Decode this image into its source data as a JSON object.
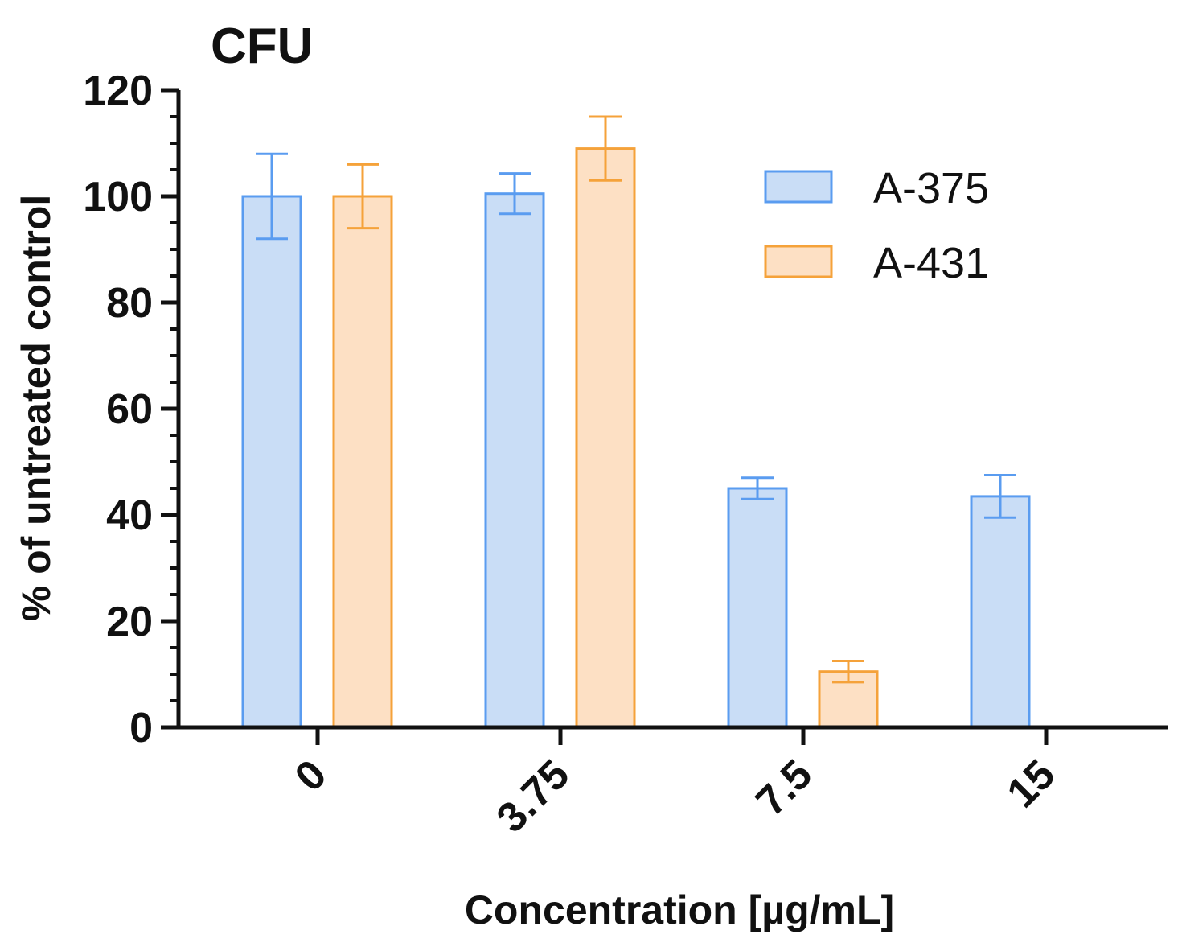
{
  "chart_data": {
    "type": "bar",
    "title": "CFU",
    "xlabel": "Concentration [µg/mL]",
    "ylabel": "% of untreated control",
    "categories": [
      "0",
      "3.75",
      "7.5",
      "15"
    ],
    "ylim": [
      0,
      120
    ],
    "yticks": [
      0,
      20,
      40,
      60,
      80,
      100,
      120
    ],
    "y_minor_step": 5,
    "grid": false,
    "legend_position": "top-right",
    "series": [
      {
        "name": "A-375",
        "values": [
          100,
          100.5,
          45,
          43.5
        ],
        "errors": [
          8,
          3.8,
          2,
          4
        ],
        "fill": "#c9ddf6",
        "stroke": "#5a9cf0"
      },
      {
        "name": "A-431",
        "values": [
          100,
          109,
          10.5,
          null
        ],
        "errors": [
          6,
          6,
          2,
          null
        ],
        "fill": "#fde0c4",
        "stroke": "#f5a23a"
      }
    ]
  }
}
